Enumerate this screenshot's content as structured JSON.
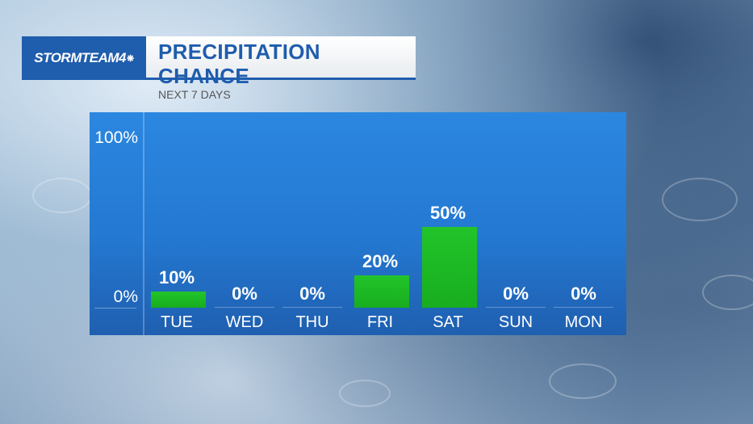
{
  "header": {
    "logo": "STORMTEAM4",
    "title": "PRECIPITATION CHANCE",
    "subtitle": "NEXT 7 DAYS"
  },
  "colors": {
    "brand_blue": "#1f5dad",
    "chart_blue": "#2479d2",
    "bar_green": "#1fbb25"
  },
  "chart_data": {
    "type": "bar",
    "title": "PRECIPITATION CHANCE",
    "subtitle": "NEXT 7 DAYS",
    "categories": [
      "TUE",
      "WED",
      "THU",
      "FRI",
      "SAT",
      "SUN",
      "MON"
    ],
    "values": [
      10,
      0,
      0,
      20,
      50,
      0,
      0
    ],
    "labels": [
      "10%",
      "0%",
      "0%",
      "20%",
      "50%",
      "0%",
      "0%"
    ],
    "ylabel": "",
    "xlabel": "",
    "ylim": [
      0,
      100
    ],
    "yticks": [
      "0%",
      "100%"
    ],
    "grid": false,
    "legend": null
  }
}
